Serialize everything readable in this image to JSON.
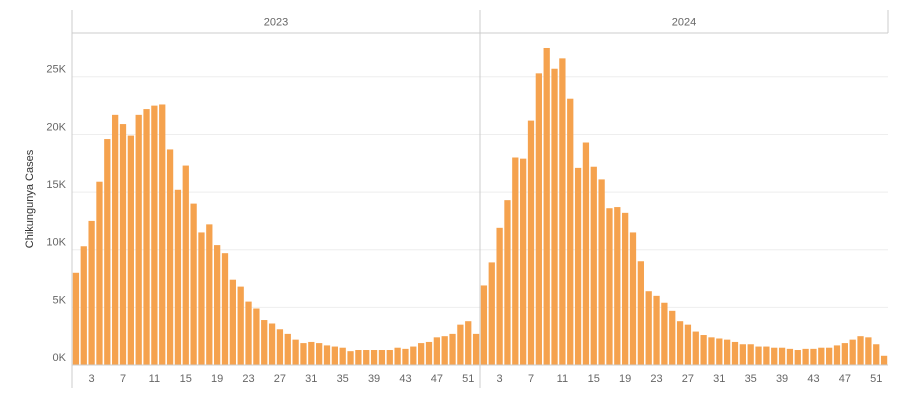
{
  "chart_data": {
    "type": "bar",
    "y_label": "Chikungunya Cases",
    "color": "#f5a24e",
    "grid": true,
    "categories": [
      null,
      null,
      "3",
      null,
      null,
      null,
      "7",
      null,
      null,
      null,
      "11",
      null,
      null,
      null,
      "15",
      null,
      null,
      null,
      "19",
      null,
      null,
      null,
      "23",
      null,
      null,
      null,
      "27",
      null,
      null,
      null,
      "31",
      null,
      null,
      null,
      "35",
      null,
      null,
      null,
      "39",
      null,
      null,
      null,
      "43",
      null,
      null,
      null,
      "47",
      null,
      null,
      null,
      "51",
      null
    ],
    "ylim": [
      0,
      28800
    ],
    "yticks": [
      {
        "value": 0,
        "label": "0K"
      },
      {
        "value": 5000,
        "label": "5K"
      },
      {
        "value": 10000,
        "label": "10K"
      },
      {
        "value": 15000,
        "label": "15K"
      },
      {
        "value": 20000,
        "label": "20K"
      },
      {
        "value": 25000,
        "label": "25K"
      }
    ],
    "facets": [
      {
        "title": "2023",
        "values": [
          8000,
          10300,
          12500,
          15900,
          19600,
          21700,
          20900,
          19900,
          21700,
          22200,
          22500,
          22600,
          18700,
          15200,
          17300,
          14000,
          11500,
          12200,
          10400,
          9700,
          7400,
          6800,
          5500,
          4900,
          3900,
          3600,
          3100,
          2700,
          2200,
          1900,
          2000,
          1900,
          1700,
          1600,
          1500,
          1200,
          1300,
          1300,
          1300,
          1300,
          1300,
          1500,
          1400,
          1600,
          1900,
          2000,
          2400,
          2500,
          2700,
          3500,
          3800,
          2700
        ]
      },
      {
        "title": "2024",
        "values": [
          6900,
          8900,
          11900,
          14300,
          18000,
          17900,
          21200,
          25300,
          27500,
          25700,
          26600,
          23100,
          17100,
          19300,
          17200,
          16100,
          13600,
          13700,
          13200,
          11500,
          9000,
          6400,
          6000,
          5400,
          4700,
          3800,
          3500,
          2900,
          2600,
          2400,
          2300,
          2200,
          2000,
          1800,
          1800,
          1600,
          1600,
          1500,
          1500,
          1400,
          1300,
          1400,
          1400,
          1500,
          1500,
          1700,
          1900,
          2200,
          2500,
          2400,
          1800,
          800
        ]
      }
    ]
  }
}
